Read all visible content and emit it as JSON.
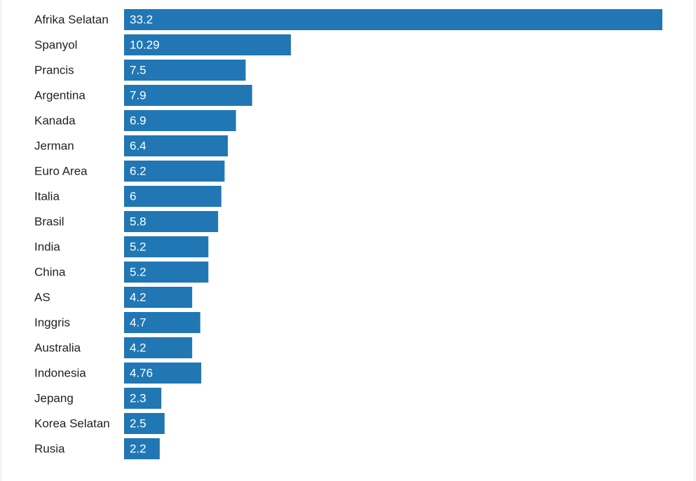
{
  "chart_data": {
    "type": "bar",
    "orientation": "horizontal",
    "color": "#2077b4",
    "categories": [
      "Afrika Selatan",
      "Spanyol",
      "Prancis",
      "Argentina",
      "Kanada",
      "Jerman",
      "Euro Area",
      "Italia",
      "Brasil",
      "India",
      "China",
      "AS",
      "Inggris",
      "Australia",
      "Indonesia",
      "Jepang",
      "Korea Selatan",
      "Rusia"
    ],
    "values": [
      33.2,
      10.29,
      7.5,
      7.9,
      6.9,
      6.4,
      6.2,
      6,
      5.8,
      5.2,
      5.2,
      4.2,
      4.7,
      4.2,
      4.76,
      2.3,
      2.5,
      2.2
    ]
  }
}
